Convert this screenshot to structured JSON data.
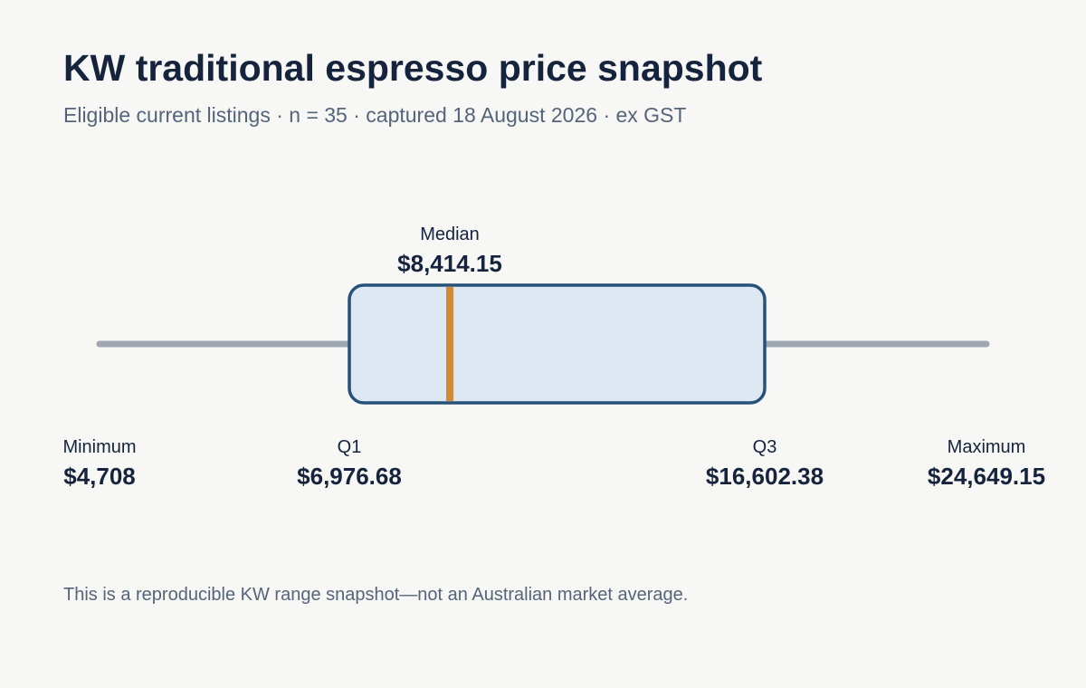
{
  "title": "KW traditional espresso price snapshot",
  "subtitle": "Eligible current listings · n = 35 · captured 18 August 2026 · ex GST",
  "footnote": "This is a reproducible KW range snapshot—not an Australian market average.",
  "colors": {
    "whisker": "#9ea6b0",
    "box_fill": "#dde8f2",
    "box_stroke": "#27507a",
    "median": "#d18b37",
    "text": "#15233d"
  },
  "chart_data": {
    "type": "box",
    "n": 35,
    "stats": {
      "min": 4708,
      "q1": 6976.68,
      "median": 8414.15,
      "q3": 16602.38,
      "max": 24649.15
    },
    "labels": {
      "min": {
        "name": "Minimum",
        "value": "$4,708"
      },
      "q1": {
        "name": "Q1",
        "value": "$6,976.68"
      },
      "median": {
        "name": "Median",
        "value": "$8,414.15"
      },
      "q3": {
        "name": "Q3",
        "value": "$16,602.38"
      },
      "max": {
        "name": "Maximum",
        "value": "$24,649.15"
      }
    }
  }
}
